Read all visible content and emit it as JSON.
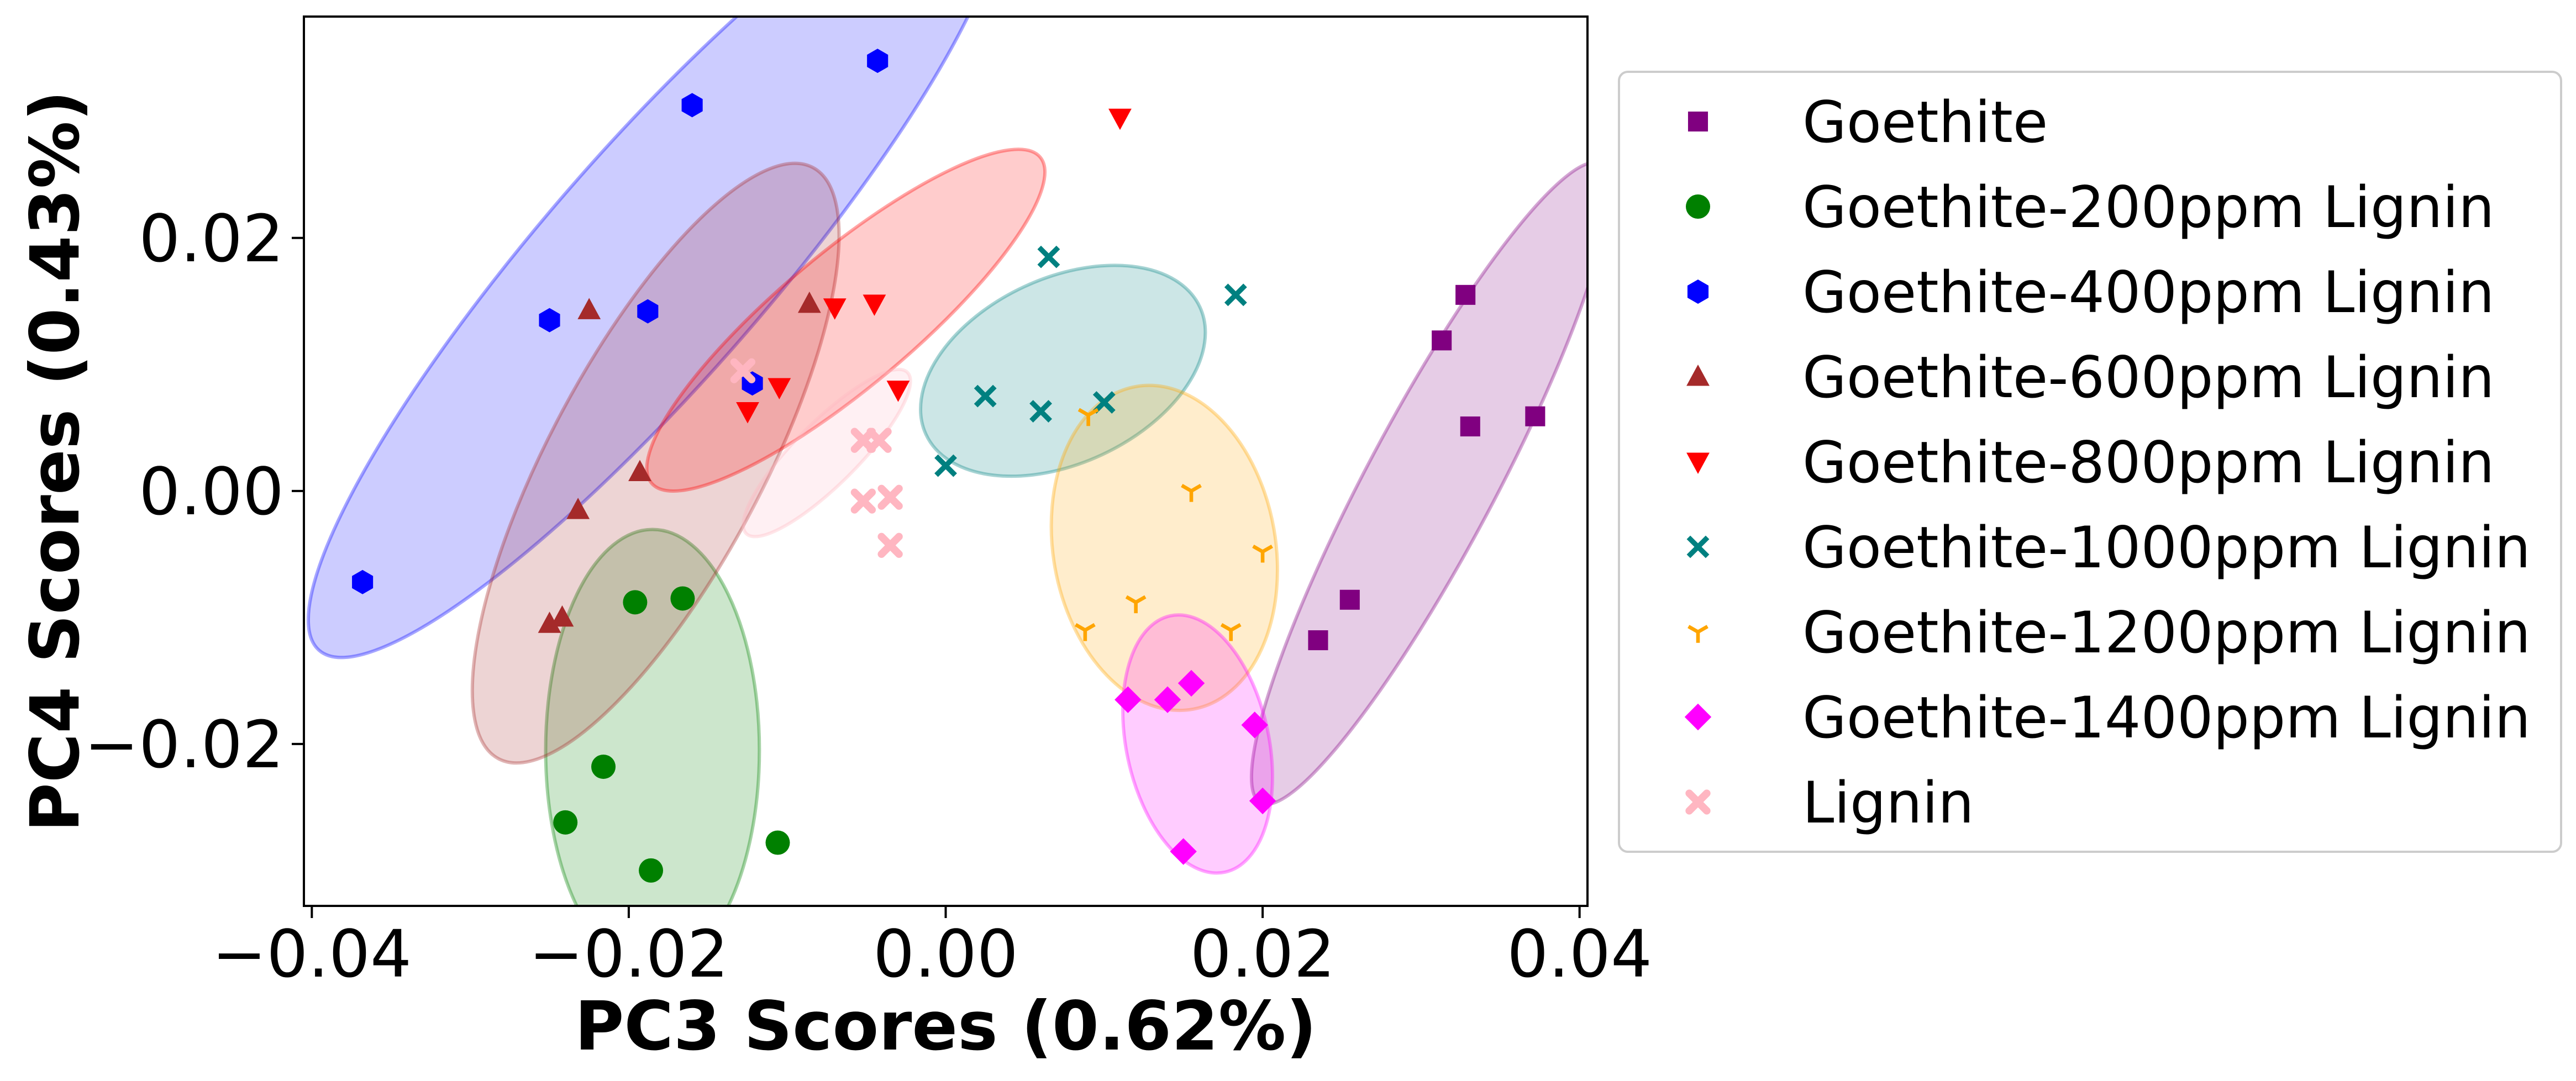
{
  "chart_data": {
    "type": "scatter",
    "title": "",
    "xlabel": "PC3 Scores (0.62%)",
    "ylabel": "PC4 Scores (0.43%)",
    "xlim": [
      -0.0405,
      0.0405
    ],
    "ylim": [
      -0.0328,
      0.0375
    ],
    "xticks": [
      -0.04,
      -0.02,
      0.0,
      0.02,
      0.04
    ],
    "xtick_labels": [
      "−0.04",
      "−0.02",
      "0.00",
      "0.02",
      "0.04"
    ],
    "yticks": [
      -0.02,
      0.0,
      0.02
    ],
    "ytick_labels": [
      "−0.02",
      "0.00",
      "0.02"
    ],
    "grid": false,
    "legend_position": "outside-right",
    "series": [
      {
        "name": "Goethite",
        "marker": "square",
        "color": "#800080",
        "points": [
          [
            0.0313,
            0.0119
          ],
          [
            0.0328,
            0.0155
          ],
          [
            0.0331,
            0.0051
          ],
          [
            0.0372,
            0.0059
          ],
          [
            0.0255,
            -0.0086
          ],
          [
            0.0235,
            -0.0118
          ]
        ],
        "ellipse": {
          "cx": 0.0306,
          "cy": 0.0006,
          "rx": 0.0254,
          "ry": 0.0045,
          "angle_deg": -62,
          "color": "#800080"
        }
      },
      {
        "name": "Goethite-200ppm Lignin",
        "marker": "circle",
        "color": "#008000",
        "points": [
          [
            -0.0196,
            -0.0088
          ],
          [
            -0.0166,
            -0.0085
          ],
          [
            -0.0216,
            -0.0218
          ],
          [
            -0.024,
            -0.0262
          ],
          [
            -0.0186,
            -0.03
          ],
          [
            -0.0106,
            -0.0278
          ]
        ],
        "ellipse": {
          "cx": -0.0185,
          "cy": -0.0205,
          "rx": 0.0075,
          "ry": 0.0155,
          "angle_deg": 0,
          "color": "#008000"
        }
      },
      {
        "name": "Goethite-400ppm Lignin",
        "marker": "hexagon",
        "color": "#0000FF",
        "points": [
          [
            -0.016,
            0.0305
          ],
          [
            -0.0043,
            0.034
          ],
          [
            -0.025,
            0.0135
          ],
          [
            -0.0188,
            0.0142
          ],
          [
            -0.0122,
            0.0085
          ],
          [
            -0.0368,
            -0.0072
          ]
        ],
        "ellipse": {
          "cx": -0.0183,
          "cy": 0.018,
          "rx": 0.036,
          "ry": 0.008,
          "angle_deg": -49,
          "color": "#0000FF"
        }
      },
      {
        "name": "Goethite-600ppm Lignin",
        "marker": "triangle-up",
        "color": "#A52A2A",
        "points": [
          [
            -0.0225,
            0.0143
          ],
          [
            -0.0086,
            0.0148
          ],
          [
            -0.0193,
            0.0015
          ],
          [
            -0.0232,
            -0.0015
          ],
          [
            -0.025,
            -0.0105
          ],
          [
            -0.0242,
            -0.01
          ]
        ],
        "ellipse": {
          "cx": -0.0183,
          "cy": 0.0022,
          "rx": 0.0235,
          "ry": 0.0075,
          "angle_deg": -62,
          "color": "#A52A2A"
        }
      },
      {
        "name": "Goethite-800ppm Lignin",
        "marker": "triangle-down",
        "color": "#FF0000",
        "points": [
          [
            0.011,
            0.0295
          ],
          [
            -0.007,
            0.0145
          ],
          [
            -0.0045,
            0.0148
          ],
          [
            -0.003,
            0.008
          ],
          [
            -0.0105,
            0.0082
          ],
          [
            -0.0125,
            0.0063
          ]
        ],
        "ellipse": {
          "cx": -0.0063,
          "cy": 0.0135,
          "rx": 0.0178,
          "ry": 0.0047,
          "angle_deg": -40,
          "color": "#FF0000"
        }
      },
      {
        "name": "Goethite-1000ppm Lignin",
        "marker": "x",
        "color": "#008080",
        "points": [
          [
            0.0065,
            0.0185
          ],
          [
            0.0183,
            0.0155
          ],
          [
            0.0025,
            0.0075
          ],
          [
            0.006,
            0.0063
          ],
          [
            0.01,
            0.007
          ],
          [
            0.0,
            0.002
          ]
        ],
        "ellipse": {
          "cx": 0.0074,
          "cy": 0.0095,
          "rx": 0.0106,
          "ry": 0.0065,
          "angle_deg": -25,
          "color": "#008080"
        }
      },
      {
        "name": "Goethite-1200ppm Lignin",
        "marker": "tri-down",
        "color": "#FFA500",
        "points": [
          [
            0.009,
            0.006
          ],
          [
            0.0155,
            0.0
          ],
          [
            0.02,
            -0.0048
          ],
          [
            0.012,
            -0.0088
          ],
          [
            0.0088,
            -0.011
          ],
          [
            0.018,
            -0.011
          ]
        ],
        "ellipse": {
          "cx": 0.0138,
          "cy": -0.0045,
          "rx": 0.0078,
          "ry": 0.0115,
          "angle_deg": -10,
          "color": "#FFA500"
        }
      },
      {
        "name": "Goethite-1400ppm Lignin",
        "marker": "diamond",
        "color": "#FF00FF",
        "points": [
          [
            0.0115,
            -0.0165
          ],
          [
            0.014,
            -0.0165
          ],
          [
            0.0155,
            -0.0152
          ],
          [
            0.0195,
            -0.0185
          ],
          [
            0.02,
            -0.0245
          ],
          [
            0.015,
            -0.0285
          ]
        ],
        "ellipse": {
          "cx": 0.0159,
          "cy": -0.02,
          "rx": 0.005,
          "ry": 0.0092,
          "angle_deg": -12,
          "color": "#FF00FF"
        }
      },
      {
        "name": "Lignin",
        "marker": "x-filled",
        "color": "#FFB6C1",
        "points": [
          [
            -0.0128,
            0.0095
          ],
          [
            -0.0052,
            0.004
          ],
          [
            -0.0042,
            0.004
          ],
          [
            -0.0052,
            -0.0008
          ],
          [
            -0.0035,
            -0.0005
          ],
          [
            -0.0035,
            -0.0043
          ]
        ],
        "ellipse": {
          "cx": -0.0075,
          "cy": 0.003,
          "rx": 0.008,
          "ry": 0.0022,
          "angle_deg": -45,
          "color": "#FFB6C1"
        }
      }
    ]
  }
}
